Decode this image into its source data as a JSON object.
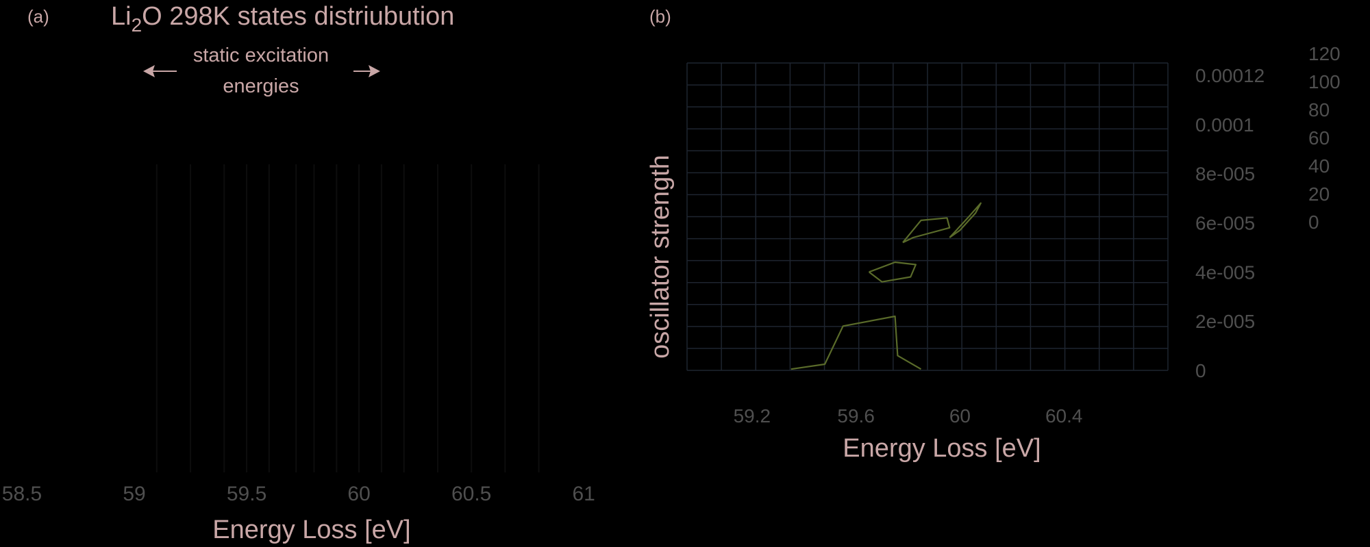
{
  "colors": {
    "background": "#000000",
    "text": "#c9a7a7",
    "tick_text": "#4f4f4f",
    "grid": "#1e2530",
    "curve": "#5a6b2a",
    "stick": "#0d0d0d"
  },
  "panels": {
    "a": {
      "label": "(a)"
    },
    "b": {
      "label": "(b)"
    }
  },
  "chart_data": [
    {
      "panel": "a",
      "type": "bar",
      "title_parts": [
        "Li",
        "2",
        "O 298K states distriubution"
      ],
      "annotation_lines": [
        "static excitation",
        "energies"
      ],
      "xlabel": "Energy Loss [eV]",
      "ylabel": "",
      "xlim": [
        58.5,
        61.1
      ],
      "x_ticks": [
        "58.5",
        "59",
        "59.5",
        "60",
        "60.5",
        "61"
      ],
      "x_tick_values": [
        58.5,
        59,
        59.5,
        60,
        60.5,
        61
      ],
      "static_excitation_energies": [
        59.1,
        59.25,
        59.4,
        59.5,
        59.6,
        59.72,
        59.8,
        59.9,
        60.0,
        60.1,
        60.2,
        60.35,
        60.5,
        60.65,
        60.8
      ],
      "grid": false
    },
    {
      "panel": "b",
      "type": "line",
      "xlabel": "Energy Loss [eV]",
      "ylabel": "oscillator strength",
      "xlim": [
        58.95,
        60.8
      ],
      "ylim": [
        0,
        0.000125
      ],
      "x_ticks": [
        "59.2",
        "59.6",
        "60",
        "60.4"
      ],
      "x_tick_values": [
        59.2,
        59.6,
        60.0,
        60.4
      ],
      "y_ticks": [
        "0",
        "2e-005",
        "4e-005",
        "6e-005",
        "8e-005",
        "0.0001",
        "0.00012"
      ],
      "y_tick_values": [
        0,
        2e-05,
        4e-05,
        6e-05,
        8e-05,
        0.0001,
        0.00012
      ],
      "y2_ticks": [
        "0",
        "20",
        "40",
        "60",
        "80",
        "100",
        "120"
      ],
      "grid": true,
      "series": [
        {
          "x": [
            59.35,
            59.48,
            59.55,
            59.75,
            59.76,
            59.85
          ],
          "y": [
            5e-07,
            2.5e-06,
            1.8e-05,
            2.2e-05,
            6e-06,
            5e-07
          ]
        },
        {
          "x": [
            59.65,
            59.75,
            59.83,
            59.81,
            59.7,
            59.65
          ],
          "y": [
            4e-05,
            4.4e-05,
            4.3e-05,
            3.8e-05,
            3.6e-05,
            4e-05
          ]
        },
        {
          "x": [
            59.78,
            59.85,
            59.95,
            59.96,
            59.82,
            59.78
          ],
          "y": [
            5.2e-05,
            6.1e-05,
            6.2e-05,
            5.8e-05,
            5.4e-05,
            5.2e-05
          ]
        },
        {
          "x": [
            59.96,
            60.03,
            60.08,
            60.06,
            60.0,
            59.96
          ],
          "y": [
            5.4e-05,
            6.2e-05,
            6.8e-05,
            6.4e-05,
            5.7e-05,
            5.4e-05
          ]
        }
      ]
    }
  ]
}
